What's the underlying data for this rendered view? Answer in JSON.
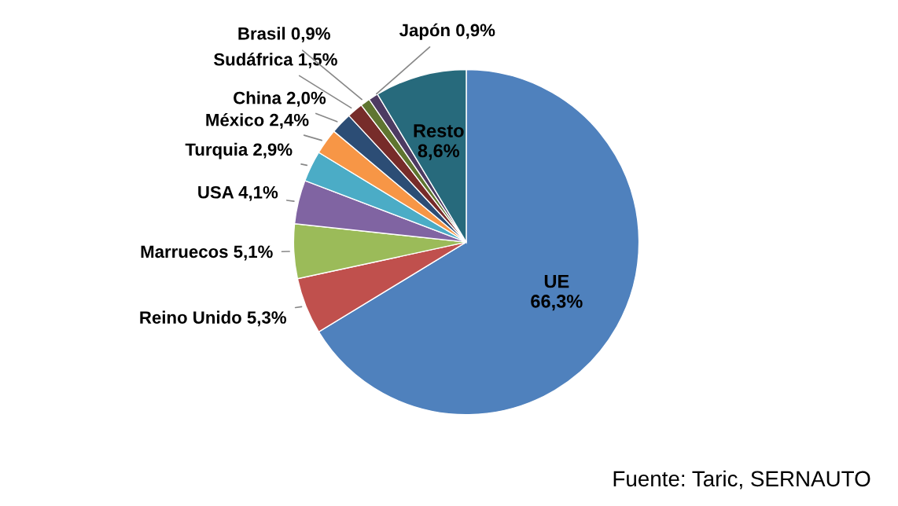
{
  "chart_data": {
    "type": "pie",
    "categories": [
      "UE",
      "Reino Unido",
      "Marruecos",
      "USA",
      "Turquia",
      "México",
      "China",
      "Sudáfrica",
      "Brasil",
      "Japón",
      "Resto"
    ],
    "values": [
      66.3,
      5.3,
      5.1,
      4.1,
      2.9,
      2.4,
      2.0,
      1.5,
      0.9,
      0.9,
      8.6
    ],
    "value_labels": [
      "66,3%",
      "5,3%",
      "5,1%",
      "4,1%",
      "2,9%",
      "2,4%",
      "2,0%",
      "1,5%",
      "0,9%",
      "0,9%",
      "8,6%"
    ],
    "colors": [
      "#4f81bd",
      "#c0504d",
      "#9bbb59",
      "#8064a2",
      "#4bacc6",
      "#f79646",
      "#2c4d75",
      "#772c2a",
      "#5f7530",
      "#4d3b62",
      "#276a7c"
    ],
    "annotations": [
      "Fuente: Taric, SERNAUTO"
    ]
  }
}
